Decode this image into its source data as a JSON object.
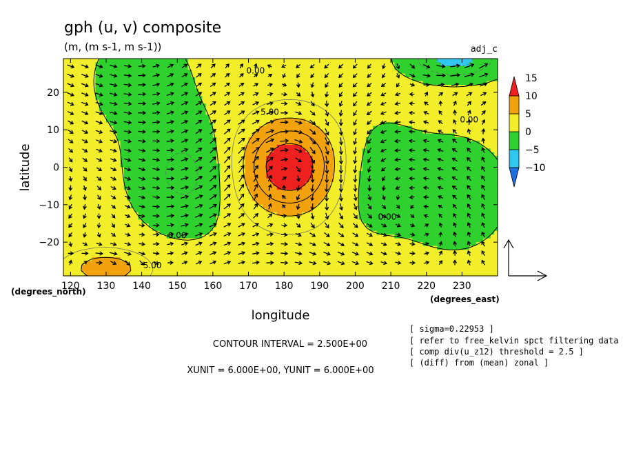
{
  "header": {
    "title": "gph (u, v) composite",
    "units": "(m, (m s-1, m s-1))",
    "tag": "adj_c"
  },
  "chart_data": {
    "type": "heatmap",
    "overlays": [
      "contour",
      "vector"
    ],
    "title": "gph (u, v) composite",
    "xlabel": "longitude",
    "ylabel": "latitude",
    "x_unit_label": "(degrees_east)",
    "y_unit_label": "(degrees_north)",
    "xlim": [
      118,
      240
    ],
    "ylim": [
      -29,
      29
    ],
    "x_ticks": [
      120,
      130,
      140,
      150,
      160,
      170,
      180,
      190,
      200,
      210,
      220,
      230
    ],
    "y_ticks": [
      -20,
      -10,
      0,
      10,
      20
    ],
    "colorbar": {
      "levels": [
        -10,
        -5,
        0,
        5,
        10,
        15
      ],
      "colors": [
        "#1e6fe0",
        "#31c8f0",
        "#2fd12f",
        "#f2ef2a",
        "#f2a20d",
        "#ee2020"
      ]
    },
    "contour_labels": [
      {
        "text": "0.00",
        "lon": 172,
        "lat": 25
      },
      {
        "text": "5.00",
        "lon": 176,
        "lat": 14
      },
      {
        "text": "0.00",
        "lon": 232,
        "lat": 12
      },
      {
        "text": "0.00",
        "lon": 209,
        "lat": -14
      },
      {
        "text": "0.00",
        "lon": 150,
        "lat": -19
      },
      {
        "text": "5.00",
        "lon": 143,
        "lat": -27
      }
    ],
    "features": [
      {
        "kind": "high",
        "center_lon": 182,
        "center_lat": 0,
        "peak": 12
      },
      {
        "kind": "low",
        "center_lon": 153,
        "center_lat": -2,
        "min": -4
      },
      {
        "kind": "low",
        "center_lon": 203,
        "center_lat": -2,
        "min": -3
      },
      {
        "kind": "low",
        "center_lon": 228,
        "center_lat": -7,
        "min": -2.5
      },
      {
        "kind": "low",
        "center_lon": 140,
        "center_lat": 23,
        "min": -2
      },
      {
        "kind": "low",
        "center_lon": 228,
        "center_lat": 29,
        "min": -7
      },
      {
        "kind": "high",
        "center_lon": 130,
        "center_lat": -27,
        "peak": 6
      }
    ],
    "contour_interval": "CONTOUR INTERVAL = 2.500E+00",
    "vector_units": "XUNIT = 6.000E+00, YUNIT = 6.000E+00"
  },
  "notes": [
    "[ sigma=0.22953 ]",
    "[ refer to free_kelvin spct filtering data ]",
    "[ comp div(u_z12) threshold = 2.5 ]",
    "[ (diff) from (mean) zonal ]"
  ]
}
